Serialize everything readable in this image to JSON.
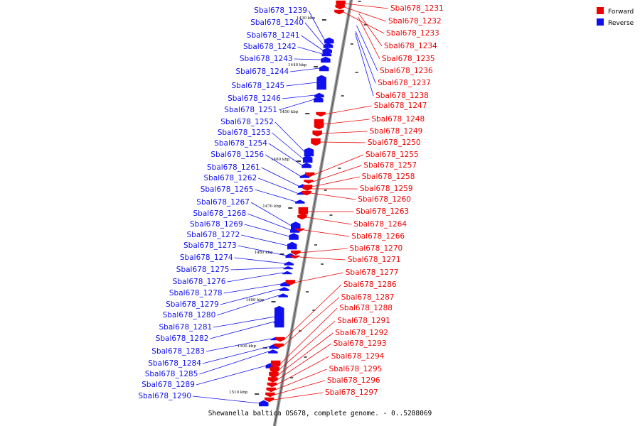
{
  "caption": "Shewanella baltica OS678, complete genome. - 0..5288069",
  "legend": {
    "forward_label": "Forward",
    "reverse_label": "Reverse",
    "forward_color": "#ee0000",
    "reverse_color": "#1010ee"
  },
  "ticks": [
    "1430 kbp",
    "1440 kbp",
    "1450 kbp",
    "1460 kbp",
    "1470 kbp",
    "1480 kbp",
    "1490 kbp",
    "1500 kbp",
    "1510 kbp"
  ],
  "reverse_genes": [
    "Sbal678_1239",
    "Sbal678_1240",
    "Sbal678_1241",
    "Sbal678_1242",
    "Sbal678_1243",
    "Sbal678_1244",
    "Sbal678_1245",
    "Sbal678_1246",
    "Sbal678_1251",
    "Sbal678_1252",
    "Sbal678_1253",
    "Sbal678_1254",
    "Sbal678_1256",
    "Sbal678_1261",
    "Sbal678_1262",
    "Sbal678_1265",
    "Sbal678_1267",
    "Sbal678_1268",
    "Sbal678_1269",
    "Sbal678_1272",
    "Sbal678_1273",
    "Sbal678_1274",
    "Sbal678_1275",
    "Sbal678_1276",
    "Sbal678_1278",
    "Sbal678_1279",
    "Sbal678_1280",
    "Sbal678_1281",
    "Sbal678_1282",
    "Sbal678_1283",
    "Sbal678_1284",
    "Sbal678_1285",
    "Sbal678_1289",
    "Sbal678_1290"
  ],
  "forward_genes": [
    "Sbal678_1231",
    "Sbal678_1232",
    "Sbal678_1233",
    "Sbal678_1234",
    "Sbal678_1235",
    "Sbal678_1236",
    "Sbal678_1237",
    "Sbal678_1238",
    "Sbal678_1247",
    "Sbal678_1248",
    "Sbal678_1249",
    "Sbal678_1250",
    "Sbal678_1255",
    "Sbal678_1257",
    "Sbal678_1258",
    "Sbal678_1259",
    "Sbal678_1260",
    "Sbal678_1263",
    "Sbal678_1264",
    "Sbal678_1266",
    "Sbal678_1270",
    "Sbal678_1271",
    "Sbal678_1277",
    "Sbal678_1286",
    "Sbal678_1287",
    "Sbal678_1288",
    "Sbal678_1291",
    "Sbal678_1292",
    "Sbal678_1293",
    "Sbal678_1294",
    "Sbal678_1295",
    "Sbal678_1296",
    "Sbal678_1297"
  ]
}
